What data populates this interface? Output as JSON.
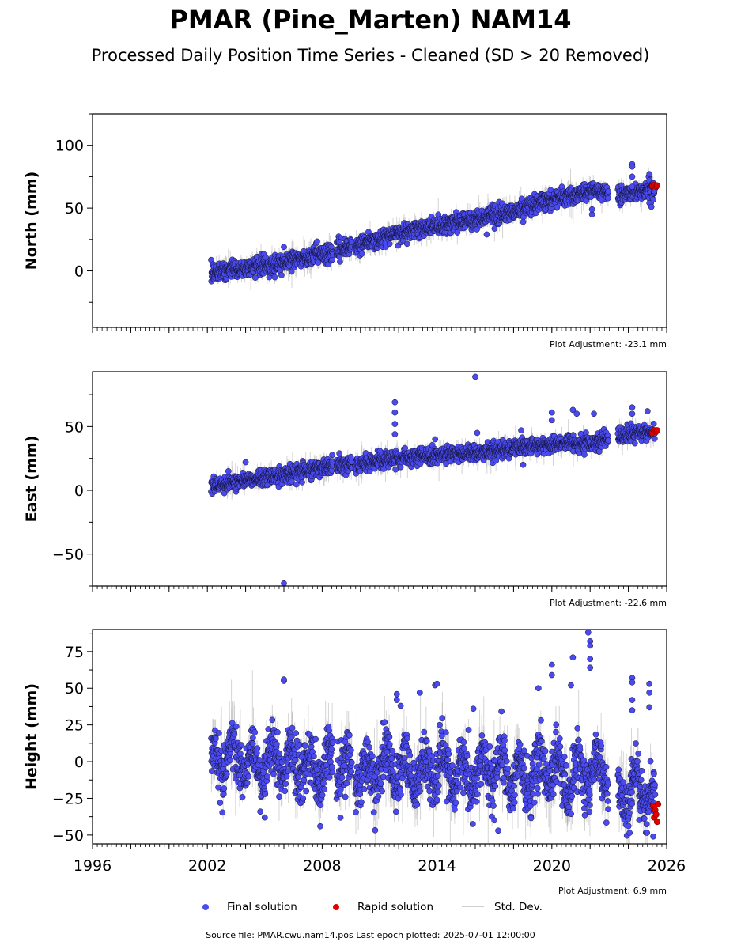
{
  "figure": {
    "title": "PMAR (Pine_Marten) NAM14",
    "subtitle": "Processed Daily Position Time Series - Cleaned (SD > 20 Removed)",
    "footer": "Source file: PMAR.cwu.nam14.pos  Last epoch plotted: 2025-07-01 12:00:00"
  },
  "legend": {
    "final_label": "Final solution",
    "rapid_label": "Rapid solution",
    "std_label": "Std. Dev."
  },
  "colors": {
    "final": "#4a4aee",
    "final_edge": "#111133",
    "rapid": "#e00000",
    "std": "#b0b0b0"
  },
  "chart_data": [
    {
      "type": "scatter",
      "panel": "north",
      "ylabel": "North (mm)",
      "xlim": [
        1996,
        2026
      ],
      "ylim": [
        -45,
        125
      ],
      "yticks": [
        0,
        50,
        100
      ],
      "ytick_labels": [
        "0",
        "50",
        "100"
      ],
      "adjustment": "Plot Adjustment: -23.1 mm",
      "show_xtick_labels": false,
      "final_trend": [
        [
          2002.2,
          -1
        ],
        [
          2004.0,
          2
        ],
        [
          2006.0,
          7
        ],
        [
          2008.0,
          13
        ],
        [
          2010.0,
          21
        ],
        [
          2012.0,
          30
        ],
        [
          2014.0,
          36
        ],
        [
          2016.0,
          41
        ],
        [
          2018.0,
          47
        ],
        [
          2020.0,
          57
        ],
        [
          2022.0,
          63
        ],
        [
          2022.8,
          64
        ],
        [
          2023.6,
          60
        ],
        [
          2024.5,
          63
        ],
        [
          2025.4,
          66
        ]
      ],
      "final_outliers": [
        [
          2006.0,
          19
        ],
        [
          2008.9,
          23
        ],
        [
          2016.6,
          29
        ],
        [
          2018.5,
          39
        ],
        [
          2022.1,
          45
        ],
        [
          2022.1,
          49
        ],
        [
          2024.2,
          85
        ],
        [
          2024.2,
          83
        ],
        [
          2024.2,
          75
        ],
        [
          2024.2,
          67
        ],
        [
          2025.1,
          77
        ],
        [
          2025.1,
          54
        ],
        [
          2025.2,
          51
        ]
      ],
      "rapid": [
        [
          2025.25,
          67.5
        ],
        [
          2025.35,
          68.5
        ],
        [
          2025.45,
          67
        ],
        [
          2025.5,
          68
        ]
      ],
      "noise_sd": 3.5,
      "std_sd": 5
    },
    {
      "type": "scatter",
      "panel": "east",
      "ylabel": "East (mm)",
      "xlim": [
        1996,
        2026
      ],
      "ylim": [
        -75,
        93
      ],
      "yticks": [
        -50,
        0,
        50
      ],
      "ytick_labels": [
        "−50",
        "0",
        "50"
      ],
      "adjustment": "Plot Adjustment: -22.6 mm",
      "show_xtick_labels": false,
      "final_trend": [
        [
          2002.2,
          2
        ],
        [
          2004.0,
          8
        ],
        [
          2006.0,
          12
        ],
        [
          2008.0,
          18
        ],
        [
          2010.0,
          21
        ],
        [
          2012.0,
          25
        ],
        [
          2014.0,
          28
        ],
        [
          2016.0,
          29
        ],
        [
          2018.0,
          33
        ],
        [
          2020.0,
          36
        ],
        [
          2022.0,
          37
        ],
        [
          2022.8,
          40
        ],
        [
          2023.6,
          44
        ],
        [
          2024.5,
          45
        ],
        [
          2025.4,
          45
        ]
      ],
      "final_outliers": [
        [
          2003.1,
          15
        ],
        [
          2004.0,
          22
        ],
        [
          2006.0,
          -73
        ],
        [
          2008.9,
          29
        ],
        [
          2011.8,
          69
        ],
        [
          2011.8,
          61
        ],
        [
          2011.8,
          52
        ],
        [
          2011.8,
          44
        ],
        [
          2013.9,
          40
        ],
        [
          2016.0,
          89
        ],
        [
          2016.1,
          45
        ],
        [
          2018.5,
          20
        ],
        [
          2018.4,
          47
        ],
        [
          2020.0,
          61
        ],
        [
          2020.0,
          55
        ],
        [
          2021.1,
          63
        ],
        [
          2021.3,
          60
        ],
        [
          2022.2,
          60
        ],
        [
          2024.2,
          65
        ],
        [
          2024.2,
          60
        ],
        [
          2025.0,
          62
        ]
      ],
      "rapid": [
        [
          2025.25,
          45
        ],
        [
          2025.35,
          47
        ],
        [
          2025.45,
          46
        ],
        [
          2025.5,
          47
        ]
      ],
      "noise_sd": 3,
      "std_sd": 4.5
    },
    {
      "type": "scatter",
      "panel": "height",
      "ylabel": "Height (mm)",
      "xlim": [
        1996,
        2026
      ],
      "ylim": [
        -56,
        90
      ],
      "yticks": [
        -50,
        -25,
        0,
        25,
        50,
        75
      ],
      "ytick_labels": [
        "−50",
        "−25",
        "0",
        "25",
        "50",
        "75"
      ],
      "xticks": [
        1996,
        2002,
        2008,
        2014,
        2020,
        2026
      ],
      "xtick_labels": [
        "1996",
        "2002",
        "2008",
        "2014",
        "2020",
        "2026"
      ],
      "adjustment": "Plot Adjustment: 6.9 mm",
      "show_xtick_labels": true,
      "final_trend": [
        [
          2002.2,
          0
        ],
        [
          2004.0,
          0
        ],
        [
          2006.0,
          0
        ],
        [
          2008.0,
          -4
        ],
        [
          2010.0,
          -6
        ],
        [
          2012.0,
          -6
        ],
        [
          2014.0,
          -6
        ],
        [
          2016.0,
          -6
        ],
        [
          2018.0,
          -7
        ],
        [
          2020.0,
          -8
        ],
        [
          2022.0,
          -9
        ],
        [
          2022.8,
          -10
        ],
        [
          2023.6,
          -20
        ],
        [
          2024.5,
          -20
        ],
        [
          2025.4,
          -30
        ]
      ],
      "final_outliers": [
        [
          2006.0,
          55
        ],
        [
          2006.0,
          56
        ],
        [
          2011.9,
          46
        ],
        [
          2011.9,
          42
        ],
        [
          2012.1,
          38
        ],
        [
          2013.1,
          47
        ],
        [
          2013.9,
          52
        ],
        [
          2014.0,
          53
        ],
        [
          2015.9,
          36
        ],
        [
          2019.3,
          50
        ],
        [
          2020.0,
          66
        ],
        [
          2020.0,
          59
        ],
        [
          2021.0,
          52
        ],
        [
          2021.1,
          71
        ],
        [
          2021.9,
          88
        ],
        [
          2022.0,
          82
        ],
        [
          2022.0,
          79
        ],
        [
          2022.0,
          70
        ],
        [
          2022.0,
          64
        ],
        [
          2024.2,
          57
        ],
        [
          2024.2,
          54
        ],
        [
          2024.2,
          42
        ],
        [
          2024.2,
          35
        ],
        [
          2025.1,
          53
        ],
        [
          2025.1,
          47
        ],
        [
          2025.1,
          37
        ],
        [
          2025.3,
          -51
        ],
        [
          2005.0,
          -38
        ],
        [
          2007.9,
          -44
        ],
        [
          2017.0,
          -40
        ],
        [
          2017.2,
          -47
        ]
      ],
      "rapid": [
        [
          2025.3,
          -30
        ],
        [
          2025.35,
          -38
        ],
        [
          2025.4,
          -33
        ],
        [
          2025.45,
          -36
        ],
        [
          2025.5,
          -41
        ],
        [
          2025.55,
          -29
        ]
      ],
      "noise_sd": 9,
      "std_sd": 12
    }
  ]
}
